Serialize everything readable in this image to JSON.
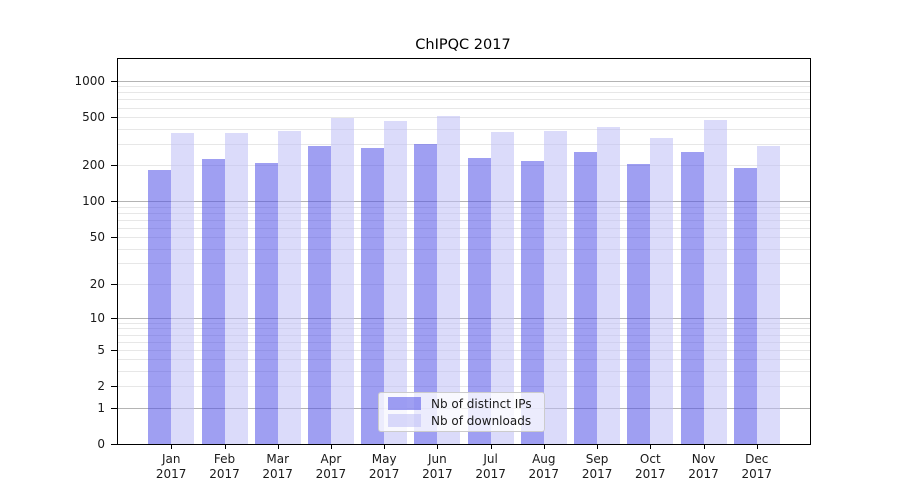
{
  "chart_data": {
    "type": "bar",
    "title": "ChIPQC 2017",
    "categories": [
      "Jan 2017",
      "Feb 2017",
      "Mar 2017",
      "Apr 2017",
      "May 2017",
      "Jun 2017",
      "Jul 2017",
      "Aug 2017",
      "Sep 2017",
      "Oct 2017",
      "Nov 2017",
      "Dec 2017"
    ],
    "series": [
      {
        "name": "Nb of distinct IPs",
        "color": "rgba(80,80,232,0.55)",
        "values": [
          183,
          226,
          208,
          290,
          278,
          298,
          230,
          218,
          257,
          203,
          259,
          188
        ]
      },
      {
        "name": "Nb of downloads",
        "color": "rgba(190,190,245,0.55)",
        "values": [
          371,
          368,
          384,
          492,
          463,
          511,
          377,
          384,
          413,
          338,
          474,
          290
        ]
      }
    ],
    "yscale": "log10(v+1)",
    "yticks": [
      0,
      1,
      2,
      5,
      10,
      20,
      50,
      100,
      200,
      500,
      1000
    ],
    "ylim": [
      0,
      1500
    ],
    "grid": {
      "major": [
        1,
        10,
        100,
        1000
      ],
      "minor": [
        2,
        3,
        4,
        5,
        6,
        7,
        8,
        9,
        20,
        30,
        40,
        50,
        60,
        70,
        80,
        90,
        200,
        300,
        400,
        500,
        600,
        700,
        800,
        900
      ],
      "major_color": "#b4b4b4",
      "minor_color": "#e7e7e7"
    },
    "legend_position": "lower center",
    "text_color": "#000000"
  }
}
